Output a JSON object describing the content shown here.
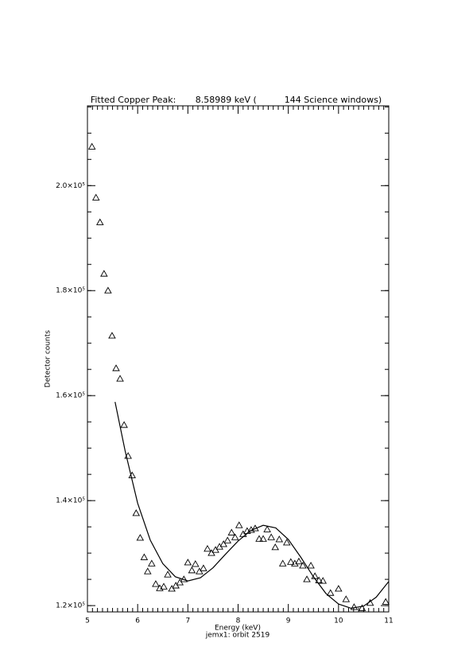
{
  "chart_data": {
    "type": "scatter",
    "title": "Fitted Copper Peak:       8.58989 keV (          144 Science windows)",
    "x_label": "Energy (keV)",
    "subtitle": "jemx1: orbit 2519",
    "y_label": "Detector counts",
    "xlim": [
      5,
      11
    ],
    "xticks": [
      5,
      6,
      7,
      8,
      9,
      10,
      11
    ],
    "xminor": 10,
    "ylim": [
      118800,
      215200
    ],
    "yticks": [
      {
        "value": 120000,
        "label": "1.2×10⁵"
      },
      {
        "value": 140000,
        "label": "1.4×10⁵"
      },
      {
        "value": 160000,
        "label": "1.6×10⁵"
      },
      {
        "value": 180000,
        "label": "1.8×10⁵"
      },
      {
        "value": 200000,
        "label": "2.0×10⁵"
      }
    ],
    "yminor": 4,
    "series": [
      {
        "type": "scatter",
        "color": "#000000",
        "x": [
          5.09,
          5.17,
          5.25,
          5.33,
          5.41,
          5.49,
          5.57,
          5.65,
          5.73,
          5.81,
          5.89,
          5.97,
          6.05,
          6.13,
          6.2,
          6.28,
          6.36,
          6.44,
          6.52,
          6.6,
          6.68,
          6.76,
          6.84,
          6.92,
          7.0,
          7.08,
          7.15,
          7.23,
          7.31,
          7.39,
          7.47,
          7.55,
          7.63,
          7.71,
          7.79,
          7.87,
          7.94,
          8.02,
          8.1,
          8.18,
          8.26,
          8.34,
          8.42,
          8.5,
          8.58,
          8.66,
          8.74,
          8.82,
          8.89,
          8.97,
          9.05,
          9.13,
          9.21,
          9.29,
          9.37,
          9.45,
          9.53,
          9.61,
          9.69,
          9.84,
          10.0,
          10.15,
          10.31,
          10.47,
          10.63,
          10.94
        ],
        "values": [
          207400,
          197700,
          193000,
          183200,
          180000,
          171400,
          165200,
          163200,
          154400,
          148500,
          144800,
          137600,
          132900,
          129200,
          126500,
          128000,
          124100,
          123300,
          123600,
          125900,
          123200,
          123800,
          124400,
          125000,
          128200,
          126700,
          127900,
          126500,
          127100,
          130800,
          130000,
          130600,
          131200,
          131700,
          132400,
          133900,
          133000,
          135300,
          133600,
          134200,
          134400,
          134700,
          132700,
          132700,
          134500,
          133000,
          131100,
          132600,
          128000,
          132000,
          128300,
          128000,
          128400,
          127600,
          125000,
          127600,
          125600,
          124800,
          124700,
          122400,
          123200,
          121200,
          119700,
          119500,
          120500,
          120700
        ]
      },
      {
        "type": "line",
        "color": "#000000",
        "x": [
          5.55,
          5.75,
          6.0,
          6.25,
          6.5,
          6.75,
          7.0,
          7.25,
          7.5,
          7.75,
          8.0,
          8.25,
          8.5,
          8.75,
          9.0,
          9.25,
          9.5,
          9.75,
          10.0,
          10.25,
          10.5,
          10.75,
          11.0
        ],
        "values": [
          158800,
          149500,
          139500,
          132500,
          128000,
          125500,
          124700,
          125300,
          127200,
          129800,
          132300,
          134300,
          135300,
          134800,
          132600,
          129200,
          125500,
          122300,
          120300,
          119500,
          119900,
          121600,
          124600
        ]
      }
    ]
  }
}
